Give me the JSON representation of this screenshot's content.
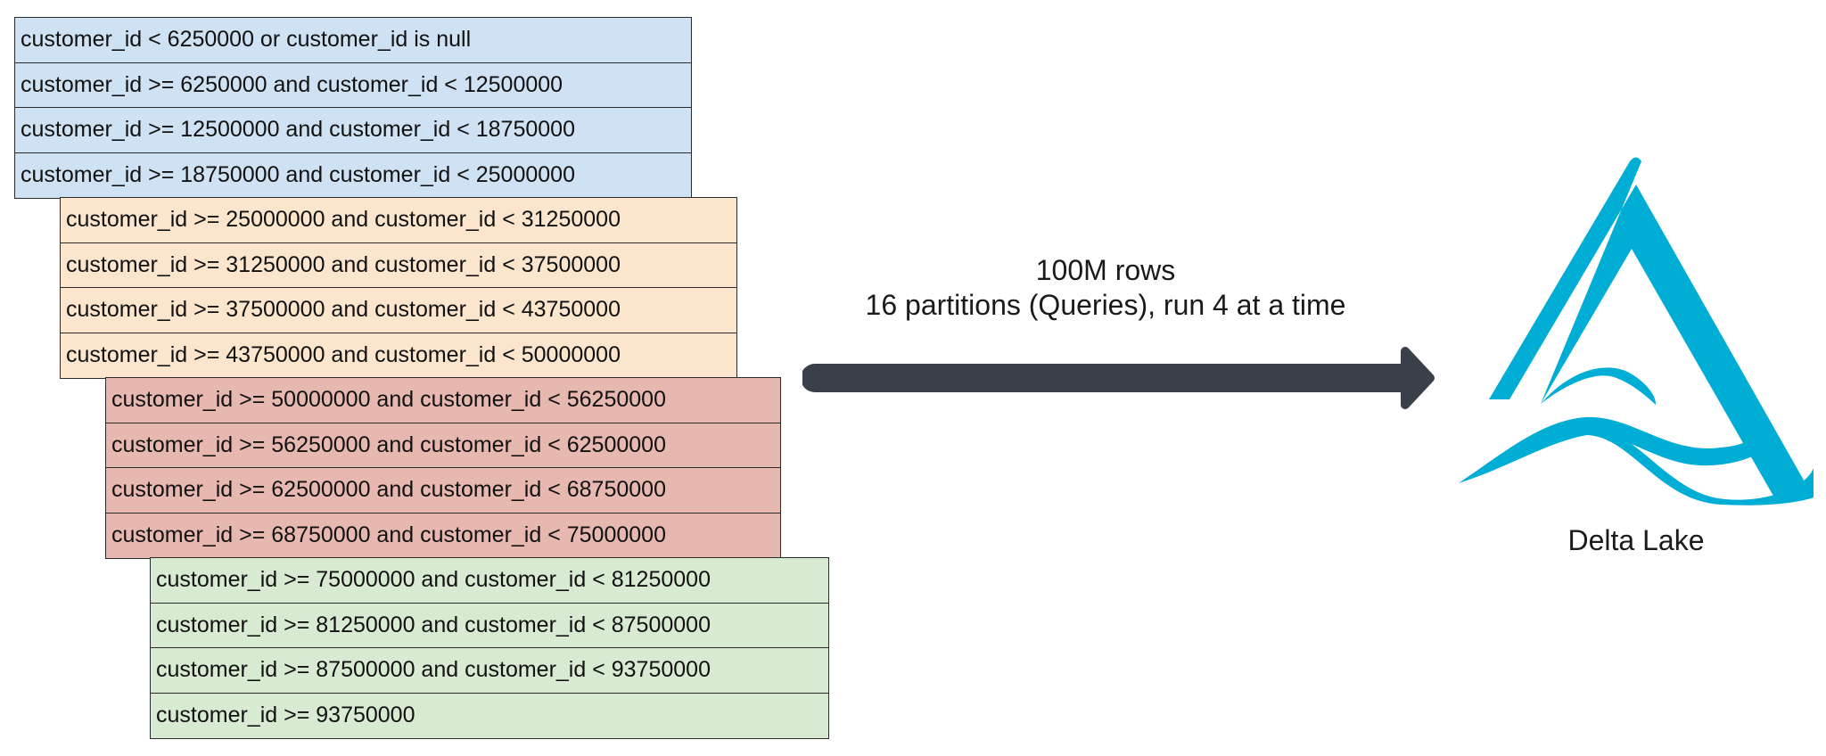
{
  "groups": [
    {
      "color": "#cfe2f3",
      "rows": [
        "customer_id < 6250000 or customer_id is null",
        "customer_id >= 6250000 and customer_id < 12500000",
        "customer_id >= 12500000 and customer_id < 18750000",
        "customer_id >= 18750000 and customer_id < 25000000"
      ]
    },
    {
      "color": "#fce5cd",
      "rows": [
        "customer_id >= 25000000 and customer_id < 31250000",
        "customer_id >= 31250000 and customer_id < 37500000",
        "customer_id >= 37500000 and customer_id < 43750000",
        "customer_id >= 43750000 and customer_id < 50000000"
      ]
    },
    {
      "color": "#e6b8af",
      "rows": [
        "customer_id >= 50000000 and customer_id < 56250000",
        "customer_id >= 56250000 and customer_id < 62500000",
        "customer_id >= 62500000 and customer_id < 68750000",
        "customer_id >= 68750000 and customer_id < 75000000"
      ]
    },
    {
      "color": "#d9ead3",
      "rows": [
        "customer_id >= 75000000 and customer_id < 81250000",
        "customer_id >= 81250000 and customer_id < 87500000",
        "customer_id >= 87500000 and customer_id < 93750000",
        "customer_id >= 93750000"
      ]
    }
  ],
  "caption": {
    "line1": "100M rows",
    "line2": "16 partitions (Queries), run 4 at a time"
  },
  "arrow_color": "#3a4049",
  "logo": {
    "icon": "delta-lake-icon",
    "color": "#00add4",
    "label": "Delta Lake"
  }
}
